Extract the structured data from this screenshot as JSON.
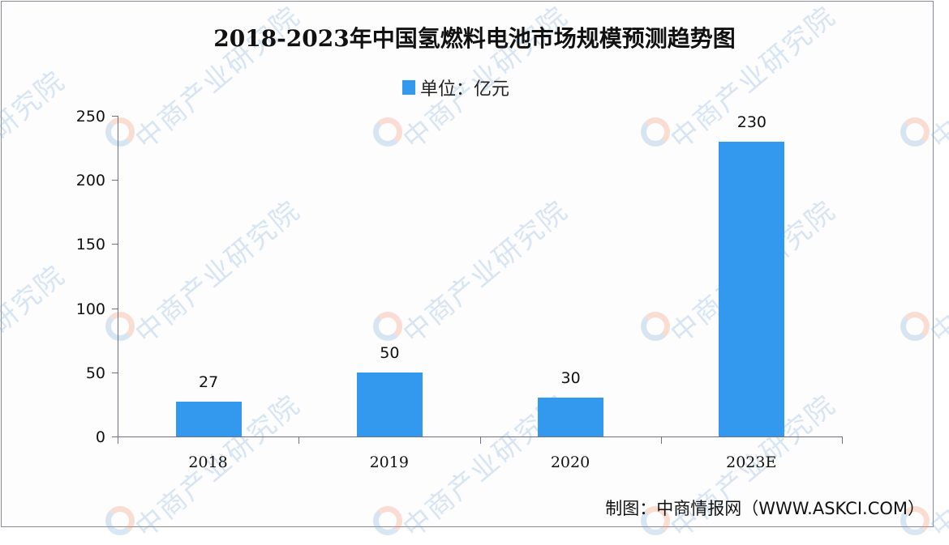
{
  "title": "2018-2023年中国氢燃料电池市场规模预测趋势图",
  "legend": {
    "label": "单位：亿元",
    "color": "#3399ee"
  },
  "footer": "制图：中商情报网（WWW.ASKCI.COM）",
  "watermark": "中商产业研究院",
  "y_ticks": [
    "250",
    "200",
    "150",
    "100",
    "50",
    "0"
  ],
  "chart_data": {
    "type": "bar",
    "title": "2018-2023年中国氢燃料电池市场规模预测趋势图",
    "categories": [
      "2018",
      "2019",
      "2020",
      "2023E"
    ],
    "series": [
      {
        "name": "单位：亿元",
        "values": [
          27,
          50,
          30,
          230
        ],
        "color": "#3399ee"
      }
    ],
    "data_labels": [
      "27",
      "50",
      "30",
      "230"
    ],
    "xlabel": "",
    "ylabel": "",
    "ylim": [
      0,
      250
    ],
    "yticks": [
      0,
      50,
      100,
      150,
      200,
      250
    ],
    "grid": false,
    "legend_position": "top"
  }
}
